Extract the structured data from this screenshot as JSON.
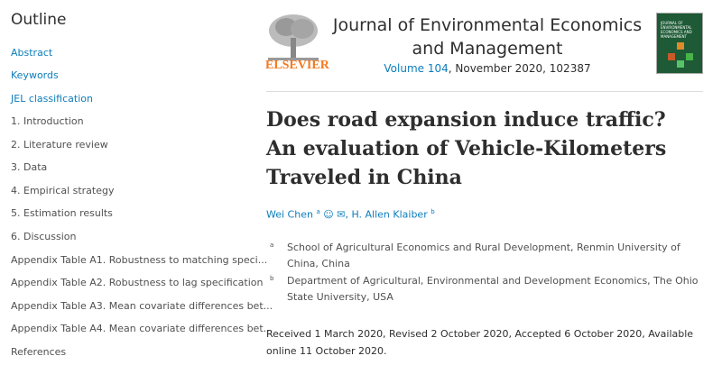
{
  "outline": {
    "title": "Outline",
    "items": [
      {
        "label": "Abstract",
        "link": true
      },
      {
        "label": "Keywords",
        "link": true
      },
      {
        "label": "JEL classification",
        "link": true
      },
      {
        "label": "1. Introduction"
      },
      {
        "label": "2. Literature review"
      },
      {
        "label": "3. Data"
      },
      {
        "label": "4. Empirical strategy"
      },
      {
        "label": "5. Estimation results"
      },
      {
        "label": "6. Discussion"
      },
      {
        "label": "Appendix Table A1. Robustness to matching speci..."
      },
      {
        "label": "Appendix Table A2. Robustness to lag specification"
      },
      {
        "label": "Appendix Table A3. Mean covariate differences bet..."
      },
      {
        "label": "Appendix Table A4. Mean covariate differences bet..."
      },
      {
        "label": "References"
      }
    ]
  },
  "header": {
    "publisher": "ELSEVIER",
    "journal": "Journal of Environmental Economics and Management",
    "volume": "Volume 104",
    "issue_info": ", November 2020, 102387",
    "cover_text": "JOURNAL OF ENVIRONMENTAL ECONOMICS AND MANAGEMENT"
  },
  "article": {
    "title": "Does road expansion induce traffic? An evaluation of Vehicle-Kilometers Traveled in China",
    "authors": [
      {
        "name": "Wei Chen",
        "sup": "a"
      },
      {
        "name": "H. Allen Klaiber",
        "sup": "b"
      }
    ],
    "affiliations": [
      {
        "sup": "a",
        "text": "School of Agricultural Economics and Rural Development, Renmin University of China, China"
      },
      {
        "sup": "b",
        "text": "Department of Agricultural, Environmental and Development Economics, The Ohio State University, USA"
      }
    ],
    "dates": "Received 1 March 2020, Revised 2 October 2020, Accepted 6 October 2020, Available online 11 October 2020."
  },
  "colors": {
    "link": "#0c7dbb",
    "elsevier_orange": "#f47a20",
    "cover_green": "#1d5a35"
  }
}
